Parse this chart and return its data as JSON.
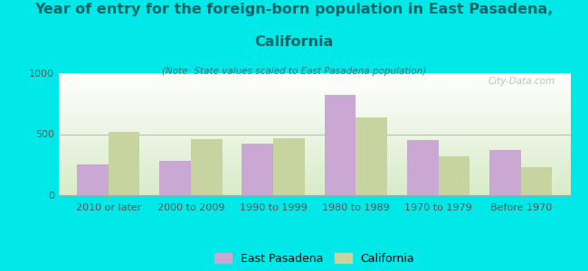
{
  "title_line1": "Year of entry for the foreign-born population in East Pasadena,",
  "title_line2": "California",
  "subtitle": "(Note: State values scaled to East Pasadena population)",
  "categories": [
    "2010 or later",
    "2000 to 2009",
    "1990 to 1999",
    "1980 to 1989",
    "1970 to 1979",
    "Before 1970"
  ],
  "east_pasadena": [
    250,
    280,
    420,
    820,
    450,
    370
  ],
  "california": [
    520,
    460,
    465,
    640,
    320,
    230
  ],
  "ep_color": "#c9a8d4",
  "ca_color": "#c8d4a0",
  "background_outer": "#00e8e8",
  "background_inner_top": "#ffffff",
  "background_inner_bottom": "#d8ecc8",
  "title_color": "#006666",
  "subtitle_color": "#337777",
  "axis_color": "#555555",
  "ylim": [
    0,
    1000
  ],
  "yticks": [
    0,
    500,
    1000
  ],
  "bar_width": 0.38,
  "watermark": "City-Data.com",
  "legend_ep": "East Pasadena",
  "legend_ca": "California",
  "title_fontsize": 11.5,
  "subtitle_fontsize": 7.5,
  "axis_fontsize": 8,
  "legend_fontsize": 9
}
